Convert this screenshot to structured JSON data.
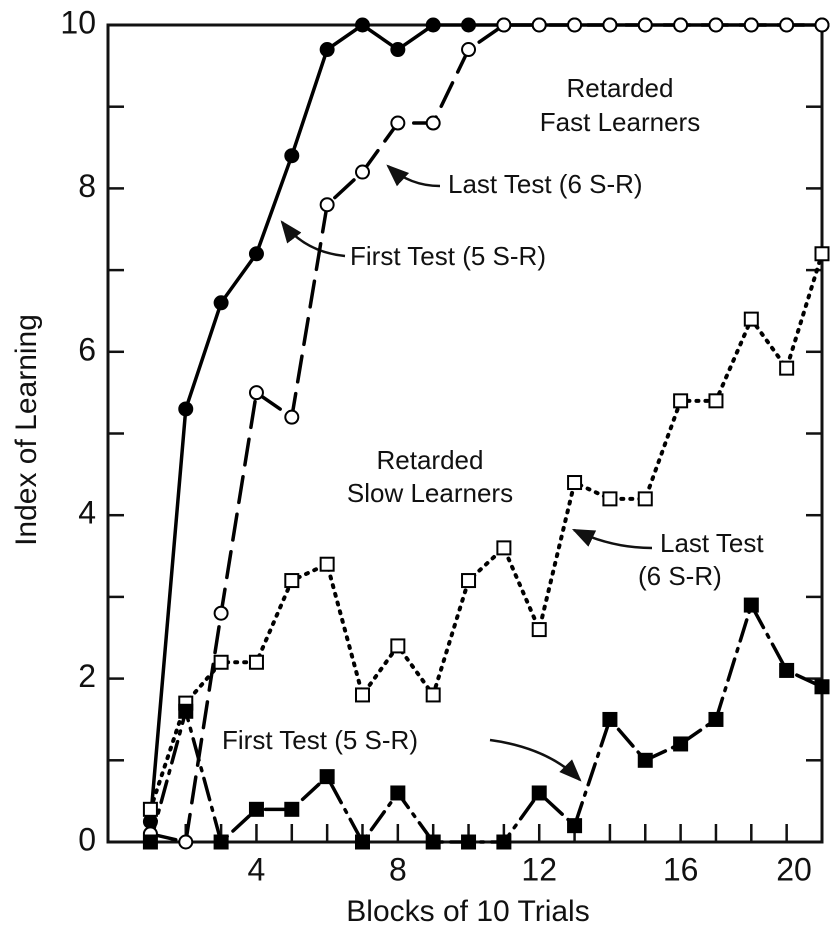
{
  "chart_data": {
    "type": "line",
    "xlabel": "Blocks of 10 Trials",
    "ylabel": "Index of Learning",
    "x": [
      1,
      2,
      3,
      4,
      5,
      6,
      7,
      8,
      9,
      10,
      11,
      12,
      13,
      14,
      15,
      16,
      17,
      18,
      19,
      20
    ],
    "series": [
      {
        "color": "#000000",
        "linestyle": "solid",
        "marker": "filled-circle",
        "values": [
          0.25,
          5.3,
          6.6,
          7.2,
          8.4,
          9.7,
          10,
          9.7,
          10,
          10,
          10,
          10,
          10,
          10,
          10,
          10,
          10,
          10,
          10,
          10
        ]
      },
      {
        "color": "#000000",
        "linestyle": "dashed",
        "marker": "open-circle",
        "values": [
          0.1,
          0,
          2.8,
          5.5,
          5.2,
          7.8,
          8.2,
          8.8,
          8.8,
          9.7,
          10,
          10,
          10,
          10,
          10,
          10,
          10,
          10,
          10,
          10
        ]
      },
      {
        "color": "#000000",
        "linestyle": "dotted",
        "marker": "open-square",
        "values": [
          0.4,
          1.7,
          2.2,
          2.2,
          3.2,
          3.4,
          1.8,
          2.4,
          1.8,
          3.2,
          3.6,
          2.6,
          4.4,
          4.2,
          4.2,
          5.4,
          5.4,
          6.4,
          5.8,
          7.2
        ]
      },
      {
        "color": "#000000",
        "linestyle": "dashdot",
        "marker": "filled-square",
        "values": [
          0,
          1.6,
          0,
          0.4,
          0.4,
          0.8,
          0,
          0.6,
          0,
          0,
          0,
          0.6,
          0.2,
          1.5,
          1.0,
          1.2,
          1.5,
          2.9,
          2.1,
          1.9
        ]
      }
    ],
    "annotations": [
      {
        "lines": [
          "Retarded",
          "Fast Learners"
        ]
      },
      {
        "lines": [
          "Last Test (6 S-R)"
        ]
      },
      {
        "lines": [
          "First Test (5 S-R)"
        ]
      },
      {
        "lines": [
          "Retarded",
          "Slow Learners"
        ]
      },
      {
        "lines": [
          "Last Test",
          "(6 S-R)"
        ]
      },
      {
        "lines": [
          "First Test (5 S-R)"
        ]
      }
    ],
    "xlim": [
      -0.2,
      20
    ],
    "ylim": [
      0,
      10
    ],
    "xticks": [
      4,
      8,
      12,
      16,
      20
    ],
    "xminor": [
      1,
      2,
      3,
      5,
      6,
      7,
      9,
      10,
      11,
      13,
      14,
      15,
      17,
      18,
      19
    ],
    "yticks": [
      0,
      2,
      4,
      6,
      8,
      10
    ],
    "yminor": [
      1,
      3,
      5,
      7,
      9
    ],
    "grid": false
  }
}
